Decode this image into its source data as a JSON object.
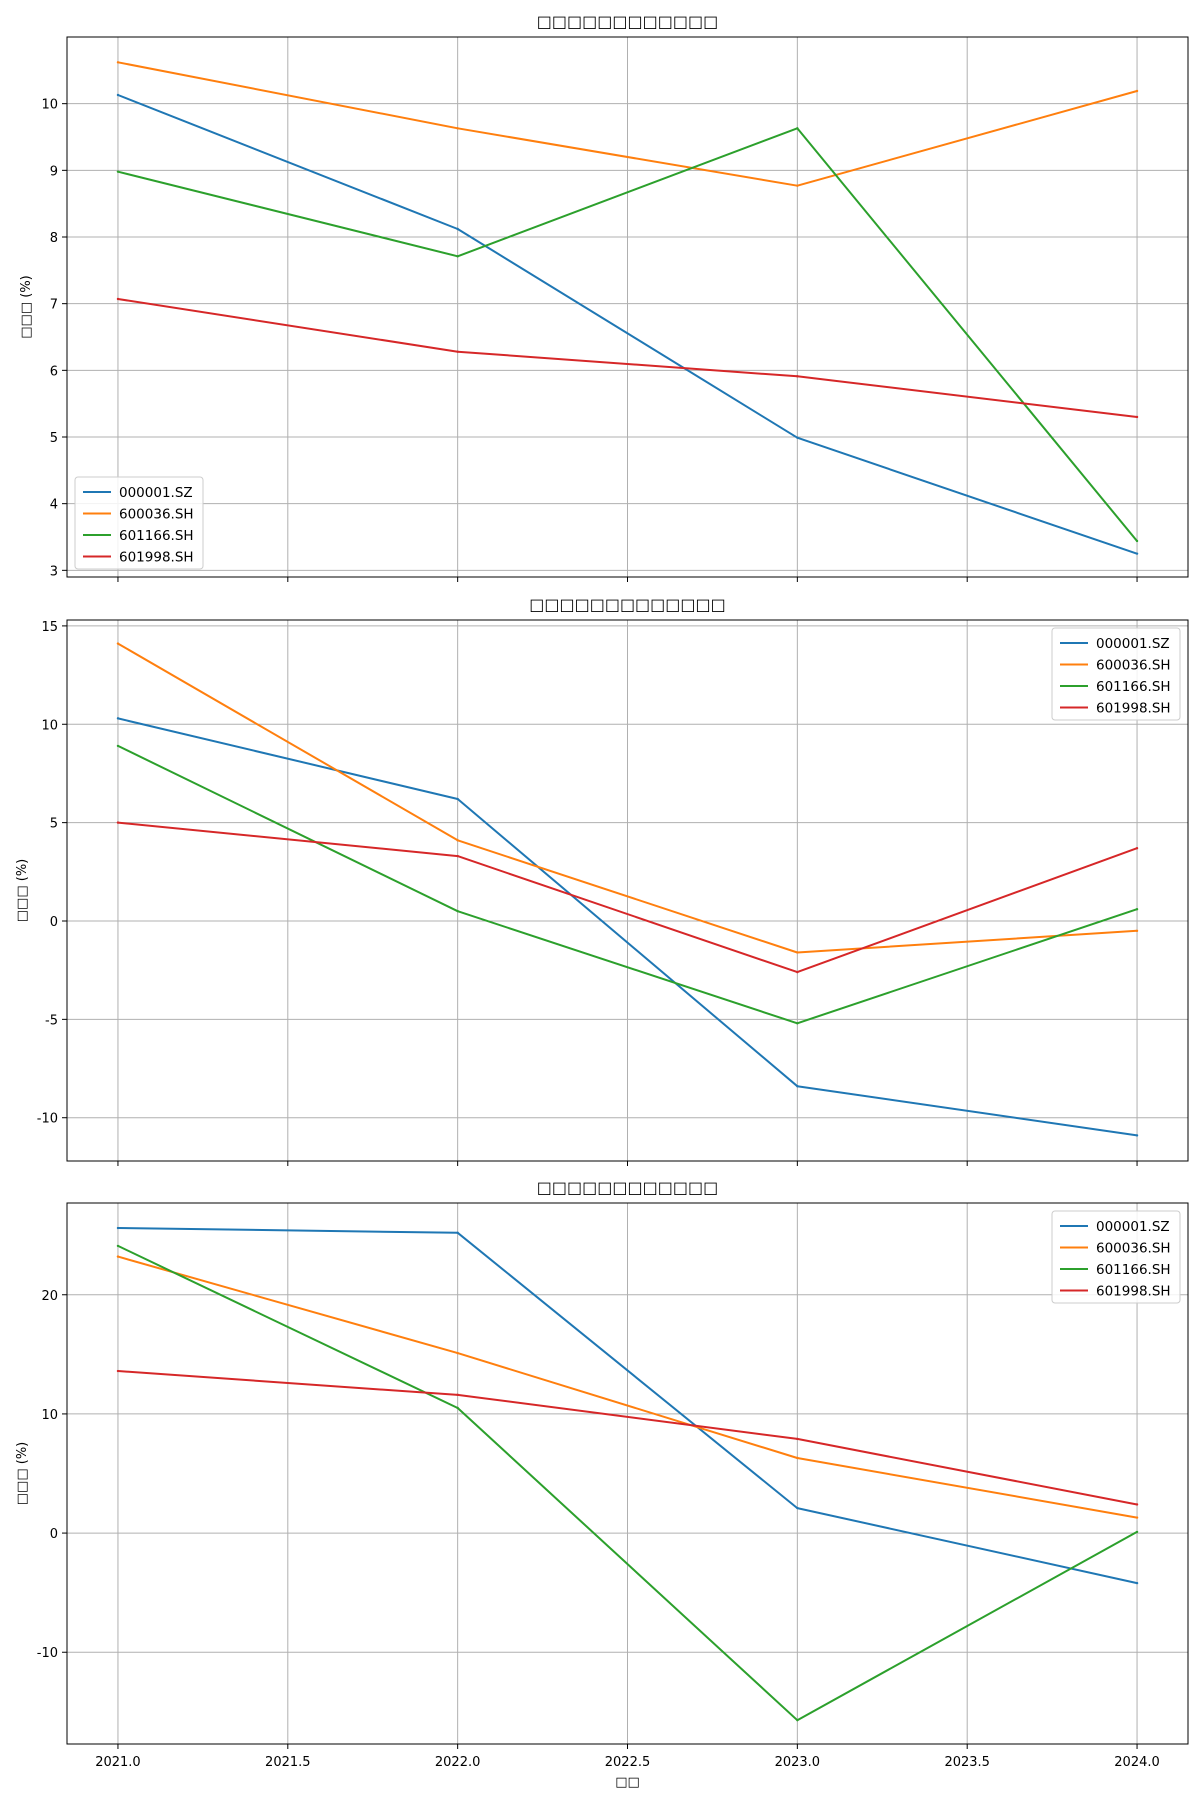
{
  "chart_data": [
    {
      "type": "line",
      "title": "□□□□□□□□□□□□",
      "xlabel": "",
      "ylabel": "□□□ (%)",
      "x": [
        2021.0,
        2022.0,
        2023.0,
        2024.0
      ],
      "xlim": [
        2020.85,
        2024.15
      ],
      "ylim": [
        2.9,
        11.0
      ],
      "yticks": [
        3,
        4,
        5,
        6,
        7,
        8,
        9,
        10
      ],
      "ytick_labels": [
        "3",
        "4",
        "5",
        "6",
        "7",
        "8",
        "9",
        "10"
      ],
      "xtick_labels_visible": false,
      "grid": true,
      "legend_position": "lower-left",
      "series": [
        {
          "name": "000001.SZ",
          "color": "#1f77b4",
          "values": [
            10.13,
            8.12,
            4.99,
            3.25
          ]
        },
        {
          "name": "600036.SH",
          "color": "#ff7f0e",
          "values": [
            10.62,
            9.63,
            8.77,
            10.19
          ]
        },
        {
          "name": "601166.SH",
          "color": "#2ca02c",
          "values": [
            8.98,
            7.71,
            9.63,
            3.44
          ]
        },
        {
          "name": "601998.SH",
          "color": "#d62728",
          "values": [
            7.07,
            6.28,
            5.91,
            5.3
          ]
        }
      ]
    },
    {
      "type": "line",
      "title": "□□□□□□□□□□□□□",
      "xlabel": "",
      "ylabel": "□□□ (%)",
      "x": [
        2021.0,
        2022.0,
        2023.0,
        2024.0
      ],
      "xlim": [
        2020.85,
        2024.15
      ],
      "ylim": [
        -12.2,
        15.3
      ],
      "yticks": [
        -10,
        -5,
        0,
        5,
        10,
        15
      ],
      "ytick_labels": [
        "-10",
        "-5",
        "0",
        "5",
        "10",
        "15"
      ],
      "xtick_labels_visible": false,
      "grid": true,
      "legend_position": "upper-right",
      "series": [
        {
          "name": "000001.SZ",
          "color": "#1f77b4",
          "values": [
            10.3,
            6.2,
            -8.4,
            -10.9
          ]
        },
        {
          "name": "600036.SH",
          "color": "#ff7f0e",
          "values": [
            14.1,
            4.1,
            -1.6,
            -0.5
          ]
        },
        {
          "name": "601166.SH",
          "color": "#2ca02c",
          "values": [
            8.9,
            0.5,
            -5.2,
            0.6
          ]
        },
        {
          "name": "601998.SH",
          "color": "#d62728",
          "values": [
            5.0,
            3.3,
            -2.6,
            3.7
          ]
        }
      ]
    },
    {
      "type": "line",
      "title": "□□□□□□□□□□□□",
      "xlabel": "□□",
      "ylabel": "□□□ (%)",
      "x": [
        2021.0,
        2022.0,
        2023.0,
        2024.0
      ],
      "xlim": [
        2020.85,
        2024.15
      ],
      "ylim": [
        -17.7,
        27.7
      ],
      "yticks": [
        -10,
        0,
        10,
        20
      ],
      "ytick_labels": [
        "-10",
        "0",
        "10",
        "20"
      ],
      "xticks": [
        2021.0,
        2021.5,
        2022.0,
        2022.5,
        2023.0,
        2023.5,
        2024.0
      ],
      "xtick_labels": [
        "2021.0",
        "2021.5",
        "2022.0",
        "2022.5",
        "2023.0",
        "2023.5",
        "2024.0"
      ],
      "xtick_labels_visible": true,
      "grid": true,
      "legend_position": "upper-right",
      "series": [
        {
          "name": "000001.SZ",
          "color": "#1f77b4",
          "values": [
            25.6,
            25.2,
            2.1,
            -4.2
          ]
        },
        {
          "name": "600036.SH",
          "color": "#ff7f0e",
          "values": [
            23.2,
            15.1,
            6.3,
            1.3
          ]
        },
        {
          "name": "601166.SH",
          "color": "#2ca02c",
          "values": [
            24.1,
            10.5,
            -15.7,
            0.1
          ]
        },
        {
          "name": "601998.SH",
          "color": "#d62728",
          "values": [
            13.6,
            11.6,
            7.9,
            2.4
          ]
        }
      ]
    }
  ]
}
